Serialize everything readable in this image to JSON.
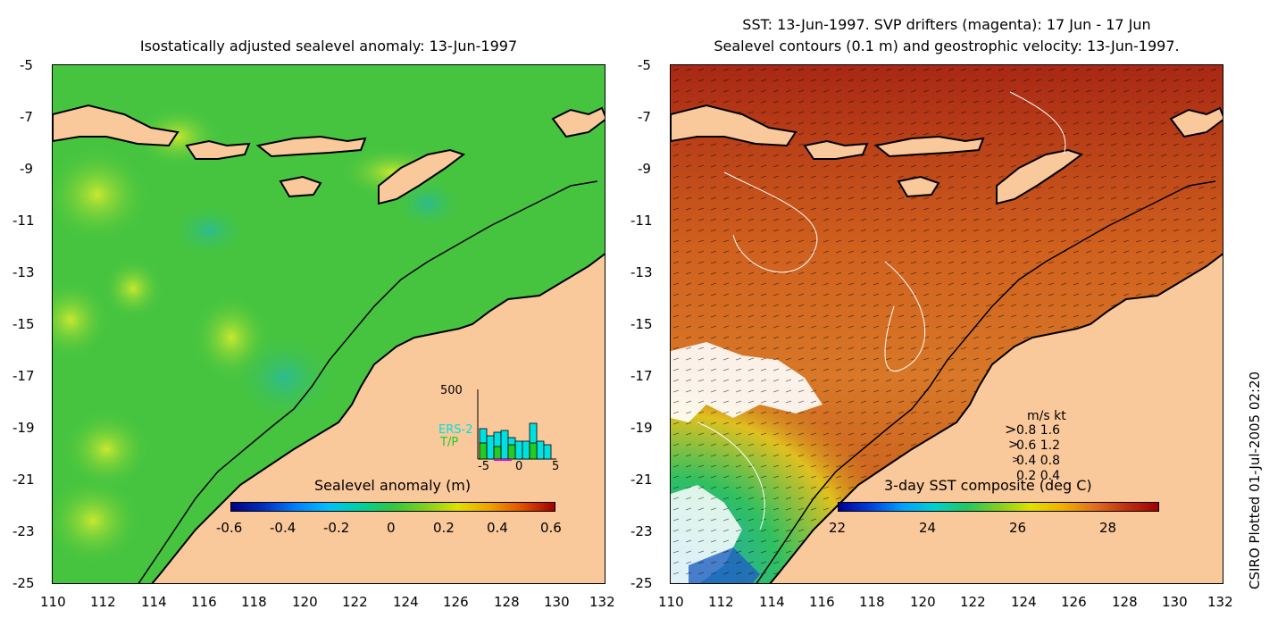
{
  "left_panel": {
    "title": "Isostatically adjusted sealevel anomaly: 13-Jun-1997",
    "y_ticks": [
      "-5",
      "-7",
      "-9",
      "-11",
      "-13",
      "-15",
      "-17",
      "-19",
      "-21",
      "-23",
      "-25"
    ],
    "x_ticks": [
      "110",
      "112",
      "114",
      "116",
      "118",
      "120",
      "122",
      "124",
      "126",
      "128",
      "130",
      "132"
    ],
    "colorbar": {
      "label": "Sealevel anomaly (m)",
      "ticks": [
        "-0.6",
        "-0.4",
        "-0.2",
        "0",
        "0.2",
        "0.4",
        "0.6"
      ]
    },
    "histogram": {
      "top_label": "500",
      "x_ticks": [
        "-5",
        "0",
        "5"
      ],
      "legend": [
        "ERS-2",
        "T/P"
      ],
      "legend_colors": [
        "#00e0e0",
        "#22cc22"
      ]
    }
  },
  "right_panel": {
    "title_line1": "SST: 13-Jun-1997. SVP drifters (magenta): 17 Jun - 17 Jun",
    "title_line2": "Sealevel contours (0.1 m) and geostrophic velocity: 13-Jun-1997.",
    "y_ticks": [
      "-5",
      "-7",
      "-9",
      "-11",
      "-13",
      "-15",
      "-17",
      "-19",
      "-21",
      "-23",
      "-25"
    ],
    "x_ticks": [
      "110",
      "112",
      "114",
      "116",
      "118",
      "120",
      "122",
      "124",
      "126",
      "128",
      "130",
      "132"
    ],
    "velocity_legend": {
      "header": "m/s  kt",
      "rows": [
        "0.8  1.6",
        "0.6  1.2",
        "0.4  0.8",
        "0.2  0.4"
      ]
    },
    "colorbar": {
      "label": "3-day SST composite (deg C)",
      "ticks": [
        "22",
        "24",
        "26",
        "28"
      ]
    }
  },
  "credit": "CSIRO Plotted 01-Jul-2005 02:20",
  "colors": {
    "land": "#f9c89b",
    "ocean_green": "#3fc83f",
    "sst_warm": "#c8501e"
  }
}
